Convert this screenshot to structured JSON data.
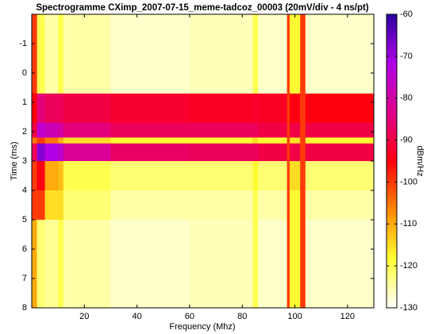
{
  "chart_data": {
    "type": "heatmap",
    "title": "Spectrogramme CXimp_2007-07-15_meme-tadcoz_00003 (20mV/div -  4 ns/pt)",
    "xlabel": "Frequency (Mhz)",
    "ylabel": "Time (ms)",
    "colorbar_label": "dBm/Hz",
    "x_edges": [
      0,
      2,
      5,
      10,
      12,
      30,
      60,
      84,
      86,
      97,
      98,
      102,
      104,
      130
    ],
    "y_edges": [
      -2,
      0.7,
      1.7,
      2.2,
      2.4,
      3.0,
      4.0,
      5.0,
      8
    ],
    "z": [
      [
        -100,
        -120,
        -125,
        -120,
        -125,
        -127,
        -126,
        -120,
        -127,
        -100,
        -118,
        -100,
        -127
      ],
      [
        -95,
        -85,
        -88,
        -88,
        -90,
        -92,
        -93,
        -92,
        -93,
        -100,
        -95,
        -100,
        -95
      ],
      [
        -90,
        -75,
        -78,
        -80,
        -85,
        -88,
        -88,
        -88,
        -90,
        -100,
        -90,
        -100,
        -90
      ],
      [
        -105,
        -100,
        -105,
        -110,
        -115,
        -118,
        -118,
        -115,
        -118,
        -100,
        -115,
        -100,
        -118
      ],
      [
        -88,
        -68,
        -72,
        -75,
        -82,
        -87,
        -88,
        -88,
        -90,
        -100,
        -90,
        -100,
        -90
      ],
      [
        -100,
        -95,
        -110,
        -112,
        -120,
        -122,
        -122,
        -118,
        -122,
        -100,
        -115,
        -100,
        -122
      ],
      [
        -100,
        -100,
        -115,
        -115,
        -122,
        -125,
        -125,
        -120,
        -125,
        -100,
        -118,
        -100,
        -125
      ],
      [
        -110,
        -122,
        -124,
        -120,
        -125,
        -127,
        -126,
        -120,
        -127,
        -100,
        -118,
        -100,
        -127
      ]
    ],
    "xlim": [
      0,
      130
    ],
    "ylim": [
      -2,
      8
    ],
    "y_inverted": true,
    "xticks": [
      20,
      40,
      60,
      80,
      100,
      120
    ],
    "yticks": [
      -1,
      0,
      1,
      2,
      3,
      4,
      5,
      6,
      7,
      8
    ],
    "clim": [
      -130,
      -60
    ],
    "cticks": [
      -60,
      -70,
      -80,
      -90,
      -100,
      -110,
      -120,
      -130
    ],
    "colormap": [
      "#ffffff",
      "#ffff33",
      "#ff8800",
      "#ff0010",
      "#e0008c",
      "#b000e8",
      "#2a00a0"
    ]
  }
}
